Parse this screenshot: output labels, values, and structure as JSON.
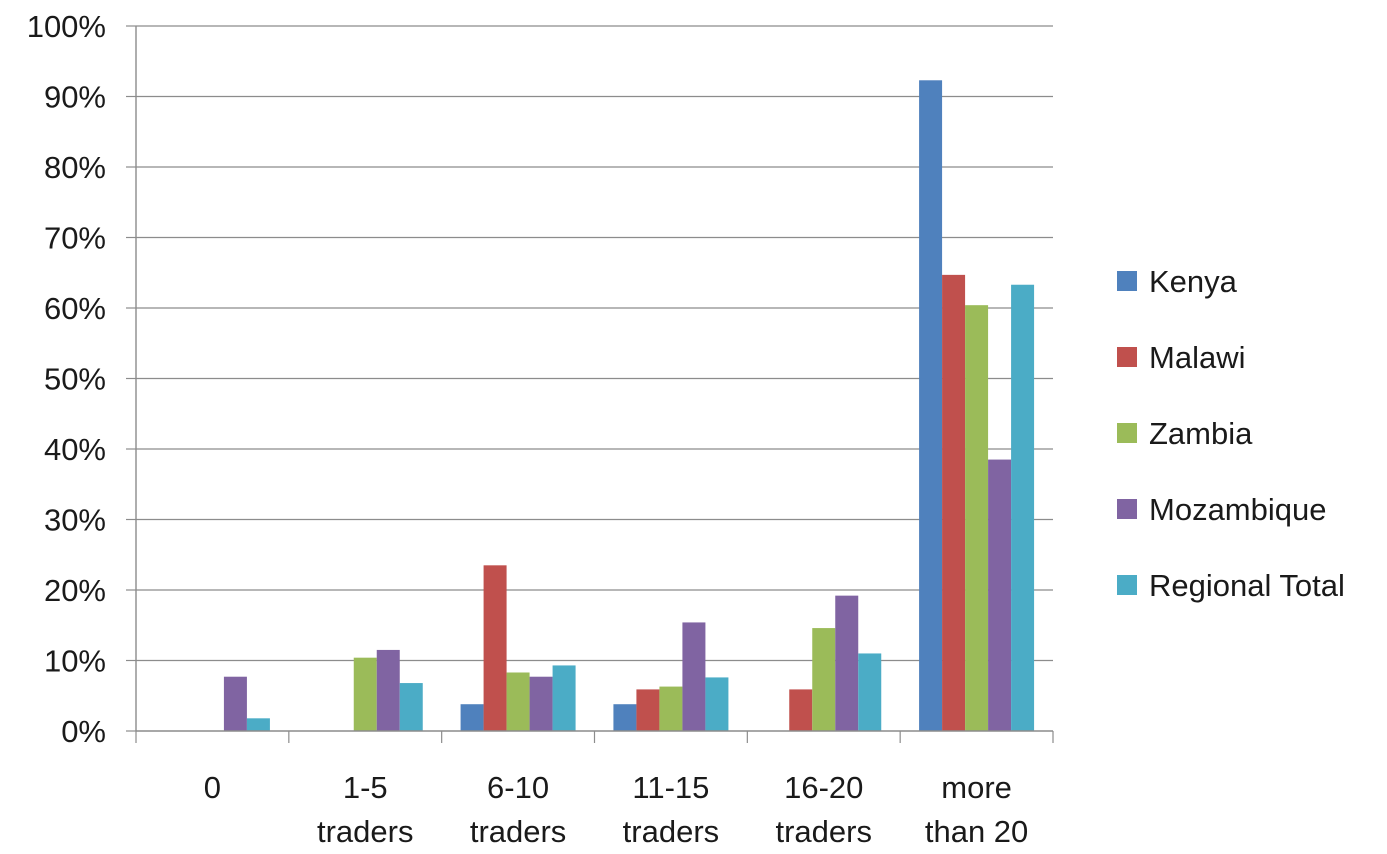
{
  "chart_data": {
    "type": "bar",
    "title": "",
    "xlabel": "",
    "ylabel": "",
    "ylim": [
      0,
      100
    ],
    "yticks": [
      "0%",
      "10%",
      "20%",
      "30%",
      "40%",
      "50%",
      "60%",
      "70%",
      "80%",
      "90%",
      "100%"
    ],
    "grid": true,
    "legend_position": "right",
    "categories": [
      [
        "0"
      ],
      [
        "1-5",
        "traders"
      ],
      [
        "6-10",
        "traders"
      ],
      [
        "11-15",
        "traders"
      ],
      [
        "16-20",
        "traders"
      ],
      [
        "more",
        "than 20"
      ]
    ],
    "series": [
      {
        "name": "Kenya",
        "color": "#4F81BD",
        "values": [
          0,
          0,
          3.8,
          3.8,
          0,
          92.3
        ]
      },
      {
        "name": "Malawi",
        "color": "#C0504D",
        "values": [
          0,
          0,
          23.5,
          5.9,
          5.9,
          64.7
        ]
      },
      {
        "name": "Zambia",
        "color": "#9BBB59",
        "values": [
          0,
          10.4,
          8.3,
          6.3,
          14.6,
          60.4
        ]
      },
      {
        "name": "Mozambique",
        "color": "#8064A2",
        "values": [
          7.7,
          11.5,
          7.7,
          15.4,
          19.2,
          38.5
        ]
      },
      {
        "name": "Regional Total",
        "color": "#4BACC6",
        "values": [
          1.8,
          6.8,
          9.3,
          7.6,
          11.0,
          63.3
        ]
      }
    ]
  }
}
